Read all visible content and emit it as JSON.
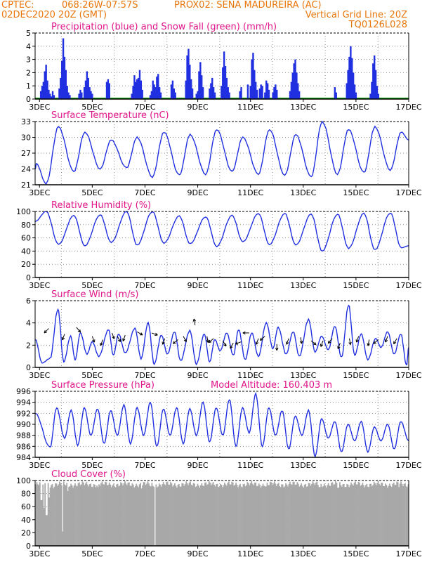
{
  "header": {
    "line1_left": "CPTEC:",
    "coords": "068:26W-07:57S",
    "station": "PROX02: SENA MADUREIRA (AC)",
    "run": "02DEC2020 20Z (GMT)",
    "grid_note": "Vertical Grid Line: 20Z",
    "code": "TQ0126L028"
  },
  "colors": {
    "header": "#e8760a",
    "panel_title": "#e0158a",
    "series": "#2030e0",
    "snow": "#10a010",
    "cloud": "#a8a8a8"
  },
  "x_axis": {
    "start_day": 2.8333,
    "end_day": 17.0,
    "ticks": [
      "3DEC",
      "5DEC",
      "7DEC",
      "9DEC",
      "11DEC",
      "13DEC",
      "15DEC",
      "17DEC"
    ],
    "tick_days": [
      3,
      5,
      7,
      9,
      11,
      13,
      15,
      17
    ],
    "grid_days": [
      3.8333,
      5.8333,
      7.8333,
      9.8333,
      11.8333,
      13.8333,
      15.8333
    ]
  },
  "chart_data": [
    {
      "type": "bar",
      "title": "Precipitation (blue) and Snow Fall (green) (mm/h)",
      "ylim": [
        0,
        5
      ],
      "yticks": [
        0,
        1,
        2,
        3,
        4,
        5
      ],
      "events": [
        [
          3.05,
          0.6
        ],
        [
          3.1,
          1.0
        ],
        [
          3.15,
          1.3
        ],
        [
          3.2,
          2.1
        ],
        [
          3.25,
          2.6
        ],
        [
          3.3,
          1.4
        ],
        [
          3.35,
          0.7
        ],
        [
          3.4,
          0.4
        ],
        [
          3.45,
          0.2
        ],
        [
          3.5,
          0.6
        ],
        [
          3.55,
          0.3
        ],
        [
          3.75,
          0.8
        ],
        [
          3.8,
          1.6
        ],
        [
          3.85,
          2.9
        ],
        [
          3.9,
          4.6
        ],
        [
          3.95,
          3.2
        ],
        [
          4.0,
          2.2
        ],
        [
          4.05,
          1.0
        ],
        [
          4.1,
          0.5
        ],
        [
          4.15,
          0.3
        ],
        [
          4.5,
          0.4
        ],
        [
          4.55,
          0.7
        ],
        [
          4.6,
          0.5
        ],
        [
          4.7,
          0.9
        ],
        [
          4.75,
          1.4
        ],
        [
          4.8,
          2.1
        ],
        [
          4.85,
          1.6
        ],
        [
          4.9,
          0.9
        ],
        [
          4.95,
          0.6
        ],
        [
          5.0,
          0.4
        ],
        [
          5.55,
          1.3
        ],
        [
          5.6,
          1.5
        ],
        [
          5.65,
          1.2
        ],
        [
          6.5,
          0.4
        ],
        [
          6.55,
          1.0
        ],
        [
          6.6,
          1.8
        ],
        [
          6.65,
          1.3
        ],
        [
          6.7,
          1.5
        ],
        [
          6.75,
          1.6
        ],
        [
          6.8,
          2.2
        ],
        [
          6.85,
          1.4
        ],
        [
          6.9,
          0.7
        ],
        [
          7.2,
          0.3
        ],
        [
          7.25,
          0.6
        ],
        [
          7.3,
          1.4
        ],
        [
          7.35,
          1.1
        ],
        [
          7.4,
          0.9
        ],
        [
          7.45,
          1.7
        ],
        [
          7.5,
          1.9
        ],
        [
          7.55,
          0.9
        ],
        [
          7.6,
          0.5
        ],
        [
          8.0,
          1.1
        ],
        [
          8.05,
          1.4
        ],
        [
          8.1,
          0.8
        ],
        [
          8.15,
          0.5
        ],
        [
          8.55,
          1.4
        ],
        [
          8.6,
          3.3
        ],
        [
          8.65,
          3.8
        ],
        [
          8.7,
          2.6
        ],
        [
          8.75,
          1.5
        ],
        [
          8.8,
          0.8
        ],
        [
          8.95,
          0.4
        ],
        [
          9.0,
          0.6
        ],
        [
          9.05,
          2.1
        ],
        [
          9.1,
          2.8
        ],
        [
          9.15,
          1.8
        ],
        [
          9.2,
          0.9
        ],
        [
          9.45,
          0.8
        ],
        [
          9.5,
          1.2
        ],
        [
          9.55,
          1.6
        ],
        [
          9.6,
          0.9
        ],
        [
          9.65,
          0.5
        ],
        [
          9.9,
          1.0
        ],
        [
          9.95,
          2.4
        ],
        [
          10.0,
          3.6
        ],
        [
          10.05,
          2.5
        ],
        [
          10.1,
          1.6
        ],
        [
          10.15,
          0.9
        ],
        [
          10.2,
          0.5
        ],
        [
          10.6,
          0.6
        ],
        [
          10.65,
          0.9
        ],
        [
          10.9,
          1.1
        ],
        [
          11.0,
          1.0
        ],
        [
          11.05,
          3.0
        ],
        [
          11.1,
          3.5
        ],
        [
          11.15,
          2.2
        ],
        [
          11.2,
          1.3
        ],
        [
          11.25,
          0.7
        ],
        [
          11.35,
          0.8
        ],
        [
          11.4,
          1.1
        ],
        [
          11.45,
          1.0
        ],
        [
          11.55,
          0.5
        ],
        [
          11.6,
          1.4
        ],
        [
          11.65,
          1.2
        ],
        [
          11.7,
          0.7
        ],
        [
          11.85,
          0.5
        ],
        [
          11.9,
          0.9
        ],
        [
          11.95,
          1.1
        ],
        [
          12.0,
          0.7
        ],
        [
          12.5,
          0.6
        ],
        [
          12.55,
          1.3
        ],
        [
          12.6,
          2.0
        ],
        [
          12.65,
          2.7
        ],
        [
          12.7,
          3.0
        ],
        [
          12.75,
          2.0
        ],
        [
          12.8,
          1.2
        ],
        [
          12.85,
          0.6
        ],
        [
          14.2,
          0.9
        ],
        [
          14.25,
          0.5
        ],
        [
          14.65,
          1.2
        ],
        [
          14.7,
          2.2
        ],
        [
          14.75,
          3.2
        ],
        [
          14.8,
          4.0
        ],
        [
          14.85,
          3.1
        ],
        [
          14.9,
          2.0
        ],
        [
          14.95,
          1.1
        ],
        [
          15.0,
          0.5
        ],
        [
          15.55,
          0.4
        ],
        [
          15.6,
          1.3
        ],
        [
          15.65,
          2.7
        ],
        [
          15.7,
          3.3
        ],
        [
          15.75,
          2.2
        ],
        [
          15.8,
          1.0
        ],
        [
          15.85,
          0.4
        ]
      ],
      "snow_value": 0
    },
    {
      "type": "line",
      "title": "Surface Temperature (nC)",
      "ylim": [
        21,
        33
      ],
      "yticks": [
        21,
        24,
        27,
        30,
        33
      ],
      "peak_days": [
        2.88,
        3.72,
        4.72,
        5.72,
        6.7,
        7.72,
        8.71,
        9.72,
        10.71,
        11.72,
        12.72,
        13.72,
        14.72,
        15.72,
        16.72
      ],
      "peak_values": [
        25.0,
        32.0,
        31.0,
        29.5,
        30.0,
        31.0,
        30.5,
        31.5,
        30.0,
        31.5,
        30.5,
        33.0,
        31.5,
        32.0,
        31.0
      ],
      "min_days": [
        2.84,
        3.25,
        4.3,
        5.3,
        6.3,
        7.28,
        8.3,
        9.3,
        10.3,
        11.3,
        12.3,
        13.3,
        14.3,
        15.3,
        16.3,
        17.0
      ],
      "min_values": [
        24.0,
        21.2,
        23.5,
        24.0,
        24.2,
        22.5,
        22.8,
        23.0,
        23.5,
        23.0,
        22.8,
        22.5,
        23.0,
        23.3,
        23.8,
        29.5
      ]
    },
    {
      "type": "line",
      "title": "Relative Humidity (%)",
      "ylim": [
        0,
        100
      ],
      "yticks": [
        0,
        20,
        40,
        60,
        80,
        100
      ],
      "peak_days": [
        2.84,
        3.25,
        4.3,
        5.3,
        6.3,
        7.28,
        8.3,
        9.3,
        10.3,
        11.3,
        12.3,
        13.3,
        14.3,
        15.3,
        16.3
      ],
      "peak_values": [
        85,
        100,
        94,
        95,
        100,
        100,
        93,
        92,
        94,
        97,
        97,
        96,
        96,
        97,
        98
      ],
      "min_days": [
        3.72,
        4.72,
        5.72,
        6.7,
        7.72,
        8.71,
        9.72,
        10.71,
        11.72,
        12.72,
        13.72,
        14.72,
        15.72,
        16.72,
        17.0
      ],
      "min_values": [
        50,
        48,
        53,
        49,
        52,
        51,
        47,
        54,
        50,
        49,
        40,
        44,
        42,
        45,
        48
      ]
    },
    {
      "type": "line",
      "title": "Surface Wind (m/s)",
      "ylim": [
        0,
        6
      ],
      "yticks": [
        0,
        2,
        4,
        6
      ],
      "peak_days": [
        3.7,
        4.18,
        4.55,
        5.0,
        5.62,
        6.0,
        6.62,
        7.12,
        7.62,
        8.12,
        8.7,
        9.25,
        9.65,
        10.1,
        10.55,
        11.05,
        11.6,
        12.05,
        12.62,
        13.2,
        13.7,
        14.2,
        14.72,
        15.2,
        15.75,
        16.2,
        16.7
      ],
      "peak_values": [
        5.2,
        2.8,
        3.1,
        2.3,
        3.4,
        3.0,
        3.5,
        4.0,
        2.9,
        3.2,
        3.3,
        3.0,
        2.5,
        3.1,
        3.4,
        3.1,
        4.0,
        3.6,
        3.2,
        4.3,
        2.8,
        3.7,
        5.6,
        3.0,
        2.6,
        3.2,
        3.0
      ],
      "min_days": [
        2.84,
        3.1,
        3.4,
        3.92,
        4.35,
        4.8,
        5.25,
        5.8,
        6.25,
        6.85,
        7.35,
        7.85,
        8.35,
        8.95,
        9.45,
        9.85,
        10.35,
        10.8,
        11.3,
        11.85,
        12.35,
        12.85,
        13.45,
        13.95,
        14.45,
        14.95,
        15.45,
        15.95,
        16.45,
        16.92,
        17.0
      ],
      "min_values": [
        2.5,
        0.4,
        0.8,
        0.5,
        0.7,
        1.2,
        1.0,
        1.1,
        1.3,
        0.8,
        0.3,
        1.2,
        0.6,
        0.3,
        0.5,
        1.5,
        1.1,
        0.7,
        1.0,
        1.7,
        1.2,
        1.0,
        1.4,
        1.6,
        0.9,
        1.1,
        0.7,
        1.8,
        1.2,
        0.2,
        1.8
      ],
      "arrows": [
        [
          3.35,
          3.5,
          225
        ],
        [
          3.95,
          3.0,
          200
        ],
        [
          4.4,
          3.6,
          140
        ],
        [
          5.0,
          2.8,
          160
        ],
        [
          5.4,
          2.5,
          200
        ],
        [
          5.75,
          3.1,
          160
        ],
        [
          5.95,
          2.8,
          150
        ],
        [
          6.25,
          2.9,
          200
        ],
        [
          6.7,
          3.2,
          120
        ],
        [
          7.25,
          3.1,
          110
        ],
        [
          7.75,
          2.6,
          200
        ],
        [
          8.25,
          2.5,
          230
        ],
        [
          8.45,
          2.8,
          150
        ],
        [
          8.9,
          3.8,
          350
        ],
        [
          9.35,
          2.8,
          170
        ],
        [
          9.6,
          2.6,
          230
        ],
        [
          9.95,
          2.4,
          150
        ],
        [
          10.35,
          2.2,
          210
        ],
        [
          10.65,
          2.3,
          250
        ],
        [
          10.95,
          3.1,
          270
        ],
        [
          11.3,
          2.6,
          200
        ],
        [
          11.55,
          2.8,
          230
        ],
        [
          12.0,
          2.1,
          180
        ],
        [
          12.45,
          2.6,
          200
        ],
        [
          12.9,
          2.7,
          170
        ],
        [
          13.3,
          2.4,
          130
        ],
        [
          13.75,
          2.4,
          200
        ],
        [
          14.1,
          2.6,
          220
        ],
        [
          14.4,
          2.2,
          200
        ],
        [
          14.75,
          2.6,
          170
        ],
        [
          15.1,
          2.8,
          200
        ],
        [
          15.5,
          2.5,
          190
        ],
        [
          15.85,
          2.5,
          230
        ],
        [
          16.2,
          2.8,
          200
        ],
        [
          16.55,
          2.6,
          210
        ]
      ]
    },
    {
      "type": "line",
      "title": "Surface Pressure (hPa)",
      "subtitle": "Model Altitude: 160.403 m",
      "ylim": [
        984,
        996
      ],
      "yticks": [
        984,
        986,
        988,
        990,
        992,
        994,
        996
      ],
      "peak_days": [
        2.84,
        3.65,
        4.2,
        4.7,
        5.2,
        5.7,
        6.2,
        6.7,
        7.2,
        7.7,
        8.2,
        8.7,
        9.2,
        9.7,
        10.2,
        10.7,
        11.2,
        11.7,
        12.2,
        12.7,
        13.2,
        13.7,
        14.2,
        14.7,
        15.2,
        15.7,
        16.2,
        16.7
      ],
      "peak_values": [
        992.0,
        993.0,
        992.5,
        993.0,
        992.8,
        992.5,
        993.5,
        993.0,
        994.0,
        992.8,
        993.0,
        992.8,
        994.0,
        993.0,
        994.5,
        993.0,
        995.5,
        993.0,
        992.5,
        991.5,
        992.5,
        991.0,
        990.5,
        990.0,
        990.5,
        989.5,
        990.0,
        990.5
      ],
      "min_days": [
        3.4,
        3.95,
        4.45,
        4.95,
        5.45,
        5.95,
        6.45,
        6.95,
        7.45,
        7.95,
        8.45,
        8.95,
        9.45,
        9.95,
        10.45,
        10.95,
        11.45,
        11.95,
        12.45,
        12.95,
        13.45,
        13.95,
        14.45,
        14.95,
        15.45,
        15.95,
        16.45,
        17.0
      ],
      "min_values": [
        985.8,
        987.5,
        986.2,
        988.0,
        986.5,
        988.0,
        986.5,
        988.0,
        986.0,
        988.0,
        986.5,
        988.0,
        986.8,
        988.0,
        986.0,
        988.5,
        986.0,
        988.0,
        985.5,
        988.0,
        984.2,
        987.5,
        985.0,
        987.0,
        985.0,
        987.0,
        985.5,
        987.0
      ]
    },
    {
      "type": "bar",
      "title": "Cloud Cover (%)",
      "ylim": [
        0,
        100
      ],
      "yticks": [
        0,
        20,
        40,
        60,
        80,
        100
      ],
      "baseline": 94,
      "dips": [
        [
          3.05,
          70
        ],
        [
          3.15,
          58
        ],
        [
          3.25,
          47
        ],
        [
          3.35,
          74
        ],
        [
          3.5,
          88
        ],
        [
          3.85,
          22
        ],
        [
          4.05,
          84
        ],
        [
          5.2,
          90
        ],
        [
          6.85,
          88
        ],
        [
          7.2,
          91
        ],
        [
          7.35,
          0
        ],
        [
          11.55,
          91
        ],
        [
          13.6,
          90
        ],
        [
          14.3,
          89
        ],
        [
          16.6,
          90
        ]
      ]
    }
  ]
}
